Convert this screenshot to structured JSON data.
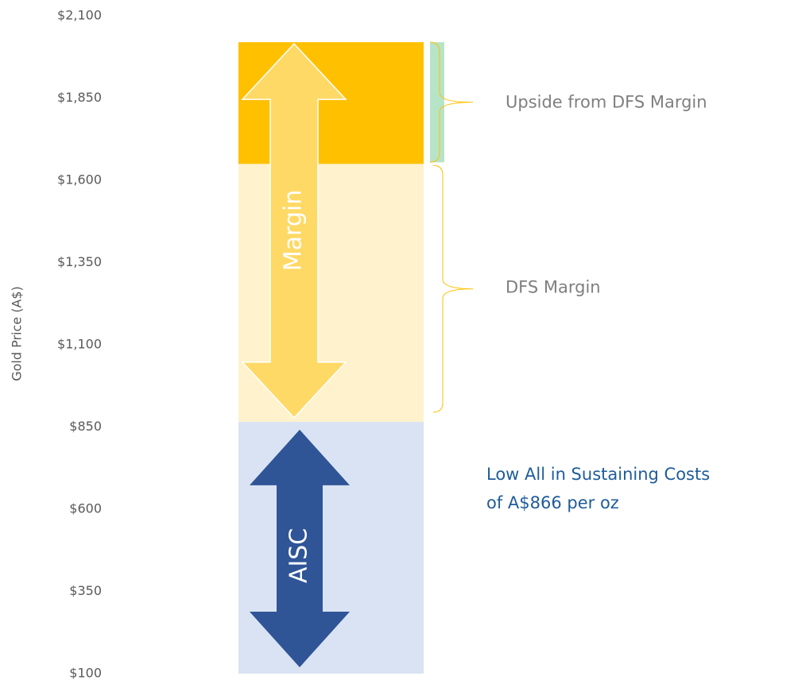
{
  "chart_data": {
    "type": "bar",
    "stacked": true,
    "ylabel": "Gold Price (A$)",
    "ylim": [
      100,
      2100
    ],
    "yticks": [
      {
        "value": 100,
        "label": "$100"
      },
      {
        "value": 350,
        "label": "$350"
      },
      {
        "value": 600,
        "label": "$600"
      },
      {
        "value": 850,
        "label": "$850"
      },
      {
        "value": 1100,
        "label": "$1,100"
      },
      {
        "value": 1350,
        "label": "$1,350"
      },
      {
        "value": 1600,
        "label": "$1,600"
      },
      {
        "value": 1850,
        "label": "$1,850"
      },
      {
        "value": 2100,
        "label": "$2,100"
      }
    ],
    "series": [
      {
        "color": "#dae3f3",
        "values": [
          866
        ],
        "arrow_label": "AISC",
        "arrow_color": "#2f5597"
      },
      {
        "color": "#fff2cc",
        "values": [
          784
        ],
        "arrow_label": "Margin",
        "arrow_color": "#ffd966",
        "note": "DFS Margin"
      },
      {
        "color": "#ffc000",
        "values": [
          370
        ],
        "note": "Upside from DFS Margin"
      }
    ],
    "annotation": [
      "Low All in Sustaining Costs",
      "of A$866 per oz"
    ]
  }
}
